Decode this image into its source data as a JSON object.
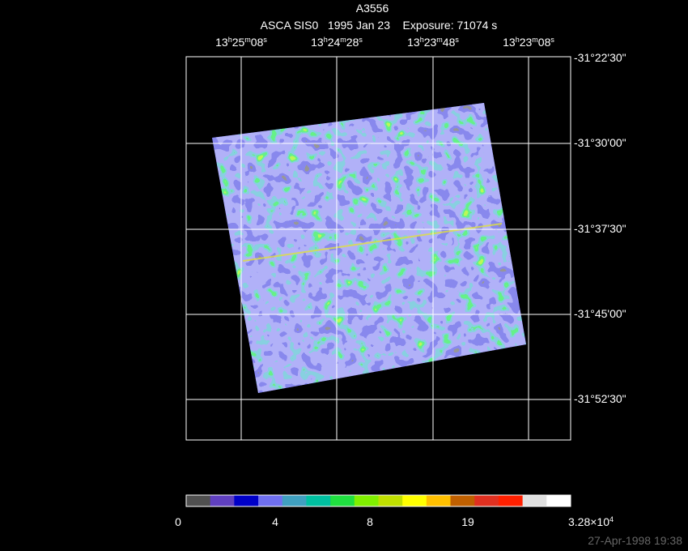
{
  "header": {
    "title": "A3556",
    "subtitle": "ASCA SIS0   1995 Jan 23    Exposure: 71074 s"
  },
  "ra_labels": [
    [
      "13",
      "h",
      "25",
      "m",
      "08",
      "s"
    ],
    [
      "13",
      "h",
      "24",
      "m",
      "28",
      "s"
    ],
    [
      "13",
      "h",
      "23",
      "m",
      "48",
      "s"
    ],
    [
      "13",
      "h",
      "23",
      "m",
      "08",
      "s"
    ]
  ],
  "dec_labels": [
    "-31°22'30\"",
    "-31°30'00\"",
    "-31°37'30\"",
    "-31°45'00\"",
    "-31°52'30\""
  ],
  "colorbar": {
    "colors": [
      "#505050",
      "#6040c0",
      "#0000c8",
      "#7070f0",
      "#40a0c0",
      "#00c0a0",
      "#20e040",
      "#80f000",
      "#c0e000",
      "#ffff00",
      "#ffc000",
      "#c06000",
      "#e03020",
      "#ff2000",
      "#e0e0e0",
      "#ffffff"
    ],
    "labels": [
      [
        "0"
      ],
      [
        "4"
      ],
      [
        "8"
      ],
      [
        "19"
      ],
      [
        "3.28×10",
        "4"
      ]
    ]
  },
  "footer": "27-Apr-1998 19:38"
}
